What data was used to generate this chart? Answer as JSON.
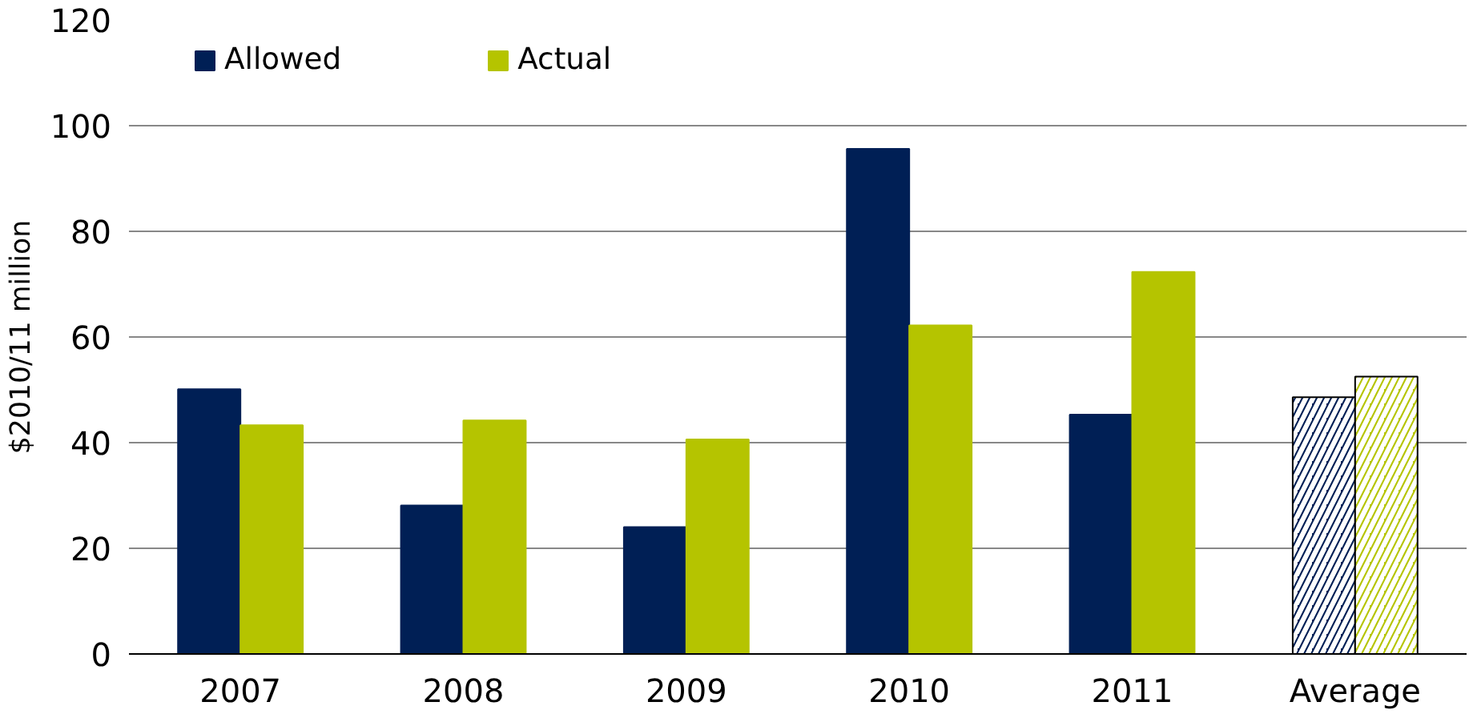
{
  "chart_data": {
    "type": "bar",
    "ylabel": "$2010/11 million",
    "categories": [
      "2007",
      "2008",
      "2009",
      "2010",
      "2011",
      "Average"
    ],
    "series": [
      {
        "name": "Allowed",
        "color": "#001f55",
        "values": [
          50.1,
          28.1,
          24.0,
          95.6,
          45.3,
          48.6
        ]
      },
      {
        "name": "Actual",
        "color": "#b5c400",
        "values": [
          43.3,
          44.2,
          40.6,
          62.2,
          72.3,
          52.5
        ]
      }
    ],
    "ylim": [
      0,
      120
    ],
    "yticks": [
      0,
      20,
      40,
      60,
      80,
      100,
      120
    ],
    "grid": "y",
    "legend": "top left"
  }
}
